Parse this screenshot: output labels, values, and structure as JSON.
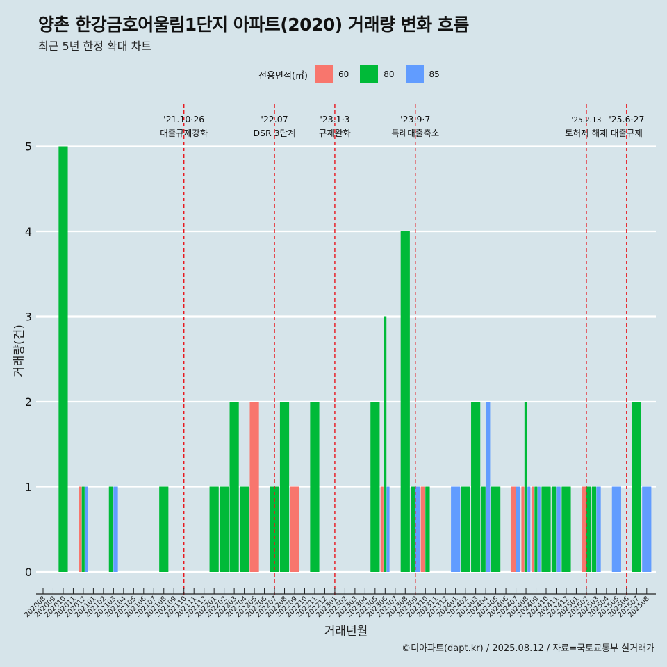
{
  "header": {
    "title": "양촌 한강금호어울림1단지 아파트(2020) 거래량 변화 흐름",
    "subtitle": "최근 5년 한정 확대 차트"
  },
  "legend": {
    "title": "전용면적(㎡)",
    "items": [
      {
        "label": "60",
        "color": "#F8766D"
      },
      {
        "label": "80",
        "color": "#00BA38"
      },
      {
        "label": "85",
        "color": "#619CFF"
      }
    ]
  },
  "caption": "©디아파트(dapt.kr) / 2025.08.12 / 자료=국토교통부 실거래가",
  "chart_data": {
    "type": "bar",
    "xlabel": "거래년월",
    "ylabel": "거래량(건)",
    "ylim": [
      0,
      5
    ],
    "yticks": [
      0,
      1,
      2,
      3,
      4,
      5
    ],
    "grid": true,
    "legend_position": "top",
    "categories": [
      "202008",
      "202009",
      "202010",
      "202011",
      "202012",
      "202101",
      "202102",
      "202103",
      "202104",
      "202105",
      "202106",
      "202107",
      "202108",
      "202109",
      "202110",
      "202111",
      "202112",
      "202201",
      "202202",
      "202203",
      "202204",
      "202205",
      "202206",
      "202207",
      "202208",
      "202209",
      "202210",
      "202211",
      "202212",
      "202301",
      "202302",
      "202303",
      "202304",
      "202305",
      "202306",
      "202307",
      "202308",
      "202309",
      "202310",
      "202311",
      "202312",
      "202401",
      "202402",
      "202403",
      "202404",
      "202405",
      "202406",
      "202407",
      "202408",
      "202409",
      "202410",
      "202411",
      "202412",
      "202501",
      "202502",
      "202503",
      "202504",
      "202505",
      "202506",
      "202507",
      "202508"
    ],
    "bars": [
      {
        "month": "202010",
        "series": [
          "80"
        ],
        "values": [
          5
        ]
      },
      {
        "month": "202012",
        "series": [
          "60",
          "80",
          "85"
        ],
        "values": [
          1,
          1,
          1
        ]
      },
      {
        "month": "202103",
        "series": [
          "80",
          "85"
        ],
        "values": [
          1,
          1
        ]
      },
      {
        "month": "202108",
        "series": [
          "80"
        ],
        "values": [
          1
        ]
      },
      {
        "month": "202201",
        "series": [
          "80"
        ],
        "values": [
          1
        ]
      },
      {
        "month": "202202",
        "series": [
          "80"
        ],
        "values": [
          1
        ]
      },
      {
        "month": "202203",
        "series": [
          "80"
        ],
        "values": [
          2
        ]
      },
      {
        "month": "202204",
        "series": [
          "80"
        ],
        "values": [
          1
        ]
      },
      {
        "month": "202205",
        "series": [
          "60"
        ],
        "values": [
          2
        ]
      },
      {
        "month": "202207",
        "series": [
          "80"
        ],
        "values": [
          1
        ]
      },
      {
        "month": "202208",
        "series": [
          "80"
        ],
        "values": [
          2
        ]
      },
      {
        "month": "202209",
        "series": [
          "60"
        ],
        "values": [
          1
        ]
      },
      {
        "month": "202211",
        "series": [
          "80"
        ],
        "values": [
          2
        ]
      },
      {
        "month": "202305",
        "series": [
          "80"
        ],
        "values": [
          2
        ]
      },
      {
        "month": "202306",
        "series": [
          "60",
          "80",
          "85"
        ],
        "values": [
          1,
          3,
          1
        ]
      },
      {
        "month": "202308",
        "series": [
          "80"
        ],
        "values": [
          4
        ]
      },
      {
        "month": "202309",
        "series": [
          "80",
          "85"
        ],
        "values": [
          1,
          1
        ]
      },
      {
        "month": "202310",
        "series": [
          "60",
          "80"
        ],
        "values": [
          1,
          1
        ]
      },
      {
        "month": "202401",
        "series": [
          "85"
        ],
        "values": [
          1
        ]
      },
      {
        "month": "202402",
        "series": [
          "80"
        ],
        "values": [
          1
        ]
      },
      {
        "month": "202403",
        "series": [
          "80"
        ],
        "values": [
          2
        ]
      },
      {
        "month": "202404",
        "series": [
          "80",
          "85"
        ],
        "values": [
          1,
          2
        ]
      },
      {
        "month": "202405",
        "series": [
          "80"
        ],
        "values": [
          1
        ]
      },
      {
        "month": "202407",
        "series": [
          "60",
          "85"
        ],
        "values": [
          1,
          1
        ]
      },
      {
        "month": "202408",
        "series": [
          "60",
          "80",
          "85"
        ],
        "values": [
          1,
          2,
          1
        ]
      },
      {
        "month": "202409",
        "series": [
          "60",
          "80",
          "85"
        ],
        "values": [
          1,
          1,
          1
        ]
      },
      {
        "month": "202410",
        "series": [
          "80"
        ],
        "values": [
          1
        ]
      },
      {
        "month": "202411",
        "series": [
          "80",
          "85"
        ],
        "values": [
          1,
          1
        ]
      },
      {
        "month": "202412",
        "series": [
          "80"
        ],
        "values": [
          1
        ]
      },
      {
        "month": "202502",
        "series": [
          "60",
          "80"
        ],
        "values": [
          1,
          1
        ]
      },
      {
        "month": "202503",
        "series": [
          "80",
          "85"
        ],
        "values": [
          1,
          1
        ]
      },
      {
        "month": "202505",
        "series": [
          "85"
        ],
        "values": [
          1
        ]
      },
      {
        "month": "202507",
        "series": [
          "80"
        ],
        "values": [
          2
        ]
      },
      {
        "month": "202508",
        "series": [
          "85"
        ],
        "values": [
          1
        ]
      }
    ],
    "events": [
      {
        "month": "202110",
        "date": "'21.10·26",
        "label": "대출규제강화"
      },
      {
        "month": "202207",
        "date": "'22.07",
        "label": "DSR 3단계"
      },
      {
        "month": "202301",
        "date": "'23.1·3",
        "label": "규제완화"
      },
      {
        "month": "202309",
        "date": "'23.9·7",
        "label": "특례대출축소"
      },
      {
        "month": "202502",
        "date": "'25.2.13",
        "label": "토허제 해제"
      },
      {
        "month": "202506",
        "date": "'25.6·27",
        "label": "대출규제"
      }
    ]
  }
}
